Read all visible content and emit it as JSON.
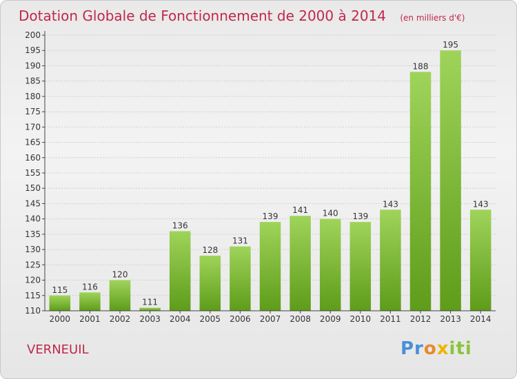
{
  "header": {
    "title": "Dotation Globale de Fonctionnement de 2000 à 2014",
    "unit": "(en milliers d'€)"
  },
  "commune": "VERNEUIL",
  "logo": {
    "text": "Proxiti"
  },
  "colors": {
    "bar_light": "#9fd45a",
    "bar_dark": "#5e9c1a",
    "title": "#c0284a"
  },
  "chart_data": {
    "type": "bar",
    "title": "Dotation Globale de Fonctionnement de 2000 à 2014",
    "subtitle": "(en milliers d'€)",
    "categories": [
      "2000",
      "2001",
      "2002",
      "2003",
      "2004",
      "2005",
      "2006",
      "2007",
      "2008",
      "2009",
      "2010",
      "2011",
      "2012",
      "2013",
      "2014"
    ],
    "values": [
      115,
      116,
      120,
      111,
      136,
      128,
      131,
      139,
      141,
      140,
      139,
      143,
      188,
      195,
      143
    ],
    "ylim": [
      110,
      200
    ],
    "yticks": [
      110,
      115,
      120,
      125,
      130,
      135,
      140,
      145,
      150,
      155,
      160,
      165,
      170,
      175,
      180,
      185,
      190,
      195,
      200
    ],
    "grid": true,
    "xlabel": "",
    "ylabel": ""
  }
}
